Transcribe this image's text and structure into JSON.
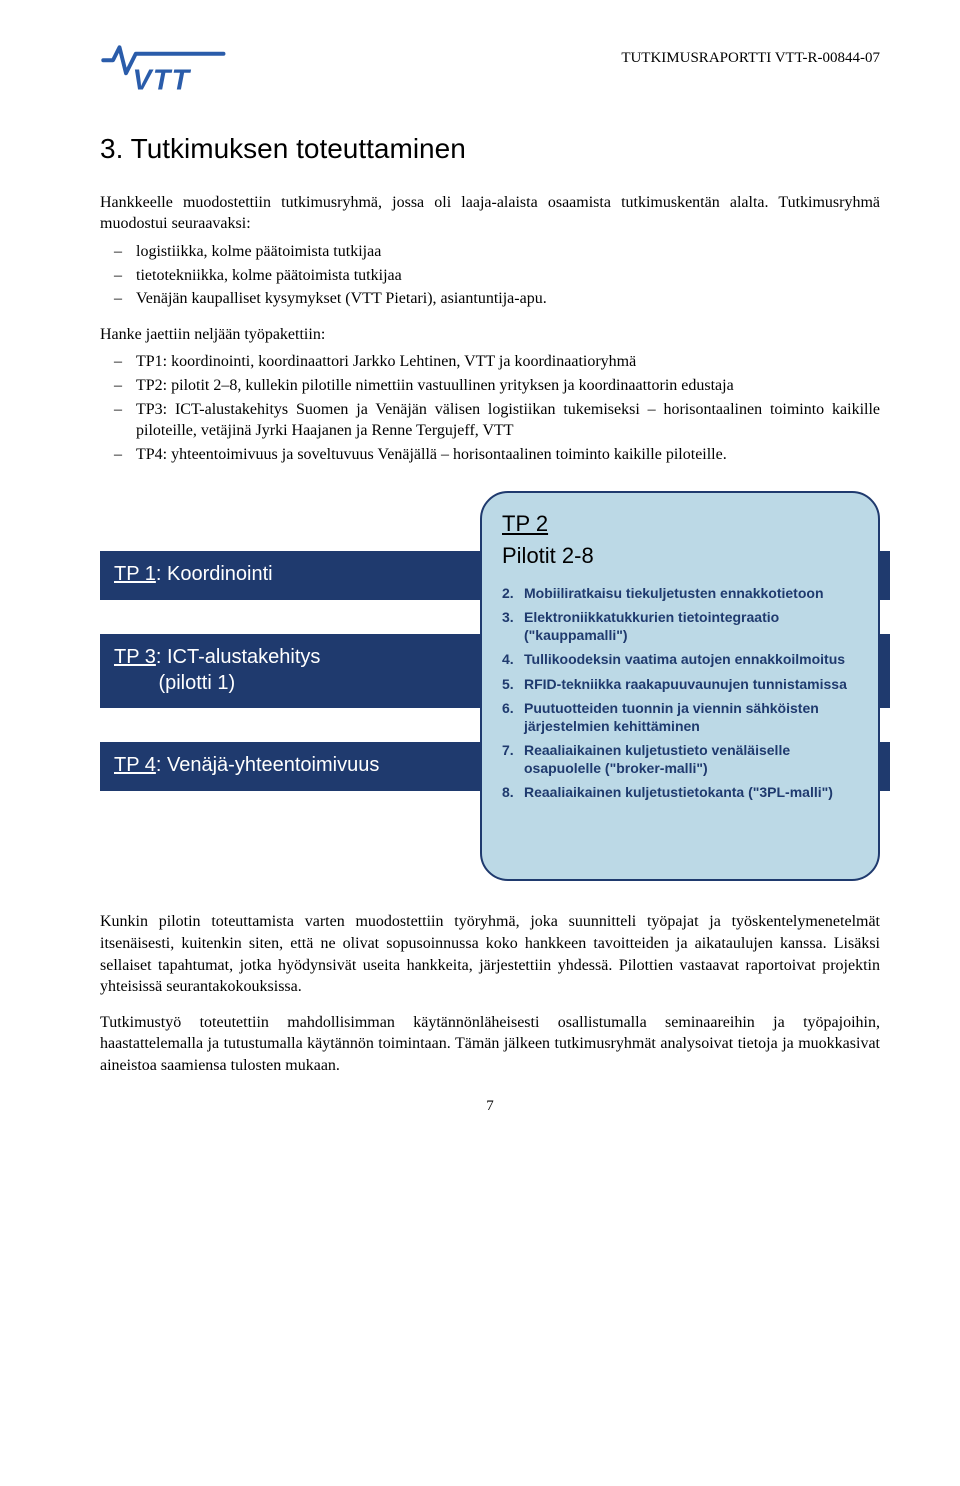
{
  "header": {
    "report_id": "TUTKIMUSRAPORTTI VTT-R-00844-07",
    "logo_text": "VTT",
    "logo_color": "#2a5caa"
  },
  "section": {
    "number": "3.",
    "title": "Tutkimuksen toteuttaminen"
  },
  "para1": "Hankkeelle muodostettiin tutkimusryhmä, jossa oli laaja-alaista osaamista tutkimuskentän alalta. Tutkimusryhmä muodostui seuraavaksi:",
  "list1": [
    "logistiikka, kolme päätoimista tutkijaa",
    "tietotekniikka, kolme päätoimista tutkijaa",
    "Venäjän kaupalliset kysymykset (VTT Pietari), asiantuntija-apu."
  ],
  "para2": "Hanke jaettiin neljään työpakettiin:",
  "list2": [
    "TP1: koordinointi, koordinaattori Jarkko Lehtinen, VTT ja koordinaatioryhmä",
    "TP2: pilotit 2–8, kullekin pilotille nimettiin vastuullinen yrityksen ja koordinaattorin edustaja",
    "TP3: ICT-alustakehitys Suomen ja Venäjän välisen logistiikan tukemiseksi – horisontaalinen toiminto kaikille piloteille, vetäjinä Jyrki Haajanen ja Renne Tergujeff, VTT",
    "TP4: yhteentoimivuus ja soveltuvuus Venäjällä – horisontaalinen toiminto kaikille piloteille."
  ],
  "diagram": {
    "bar_bg": "#1f3a6e",
    "bar_fg": "#ffffff",
    "box_bg": "#bcd9e6",
    "box_border": "#1f3a6e",
    "bars": [
      {
        "prefix": "TP 1",
        "rest": ": Koordinointi"
      },
      {
        "prefix": "TP 3",
        "rest": ": ICT-alustakehitys",
        "line2": "(pilotti 1)"
      },
      {
        "prefix": "TP 4",
        "rest": ": Venäjä-yhteentoimivuus"
      }
    ],
    "tp2": {
      "title": "TP 2",
      "subtitle": "Pilotit 2-8",
      "items": [
        {
          "n": "2.",
          "t": "Mobiiliratkaisu tiekuljetusten ennakkotietoon"
        },
        {
          "n": "3.",
          "t": "Elektroniikkatukkurien tietointegraatio (\"kauppamalli\")"
        },
        {
          "n": "4.",
          "t": "Tullikoodeksin vaatima autojen ennakkoilmoitus"
        },
        {
          "n": "5.",
          "t": "RFID-tekniikka raakapuuvaunujen tunnistamissa"
        },
        {
          "n": "6.",
          "t": "Puutuotteiden tuonnin ja viennin sähköisten järjestelmien kehittäminen"
        },
        {
          "n": "7.",
          "t": "Reaaliaikainen kuljetustieto venäläiselle osapuolelle (\"broker-malli\")"
        },
        {
          "n": "8.",
          "t": "Reaaliaikainen kuljetustietokanta (\"3PL-malli\")"
        }
      ]
    }
  },
  "para3": "Kunkin pilotin toteuttamista varten muodostettiin työryhmä, joka suunnitteli työpajat ja työskentelymenetelmät itsenäisesti, kuitenkin siten, että ne olivat sopusoinnussa koko hankkeen tavoitteiden ja aikataulujen kanssa. Lisäksi sellaiset tapahtumat, jotka hyödynsivät useita hankkeita, järjestettiin yhdessä. Pilottien vastaavat raportoivat projektin yhteisissä seurantakokouksissa.",
  "para4": "Tutkimustyö toteutettiin mahdollisimman käytännönläheisesti osallistumalla seminaareihin ja työpajoihin, haastattelemalla ja tutustumalla käytännön toimintaan. Tämän jälkeen tutkimusryhmät analysoivat tietoja ja muokkasivat aineistoa saamiensa tulosten mukaan.",
  "page_number": "7"
}
